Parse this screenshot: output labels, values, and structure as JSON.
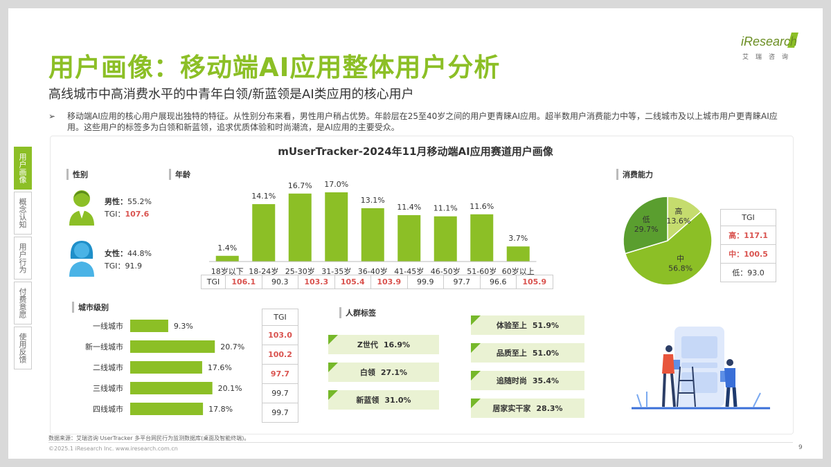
{
  "header": {
    "title": "用户画像：移动端AI应用整体用户分析",
    "subtitle": "高线城市中高消费水平的中青年白领/新蓝领是AI类应用的核心用户",
    "bullet_marker": "➢",
    "bullet": "移动端AI应用的核心用户展现出独特的特征。从性别分布来看，男性用户稍占优势。年龄层在25至40岁之间的用户更青睐AI应用。超半数用户消费能力中等，二线城市及以上城市用户更青睐AI应用。这些用户的标签多为白领和新蓝领，追求优质体验和时尚潮流，是AI应用的主要受众。"
  },
  "logo": {
    "brand": "iResearch",
    "sub": "艾瑞咨询"
  },
  "sidebar": {
    "items": [
      {
        "label": "用户画像",
        "active": true
      },
      {
        "label": "概念认知",
        "active": false
      },
      {
        "label": "用户行为",
        "active": false
      },
      {
        "label": "付费意愿",
        "active": false
      },
      {
        "label": "使用反馈",
        "active": false
      }
    ]
  },
  "colors": {
    "accent": "#8cbf26",
    "dark_green": "#5a9e2f",
    "mid_green": "#76b82a",
    "red": "#d9534f"
  },
  "sections": {
    "gender": "性别",
    "age": "年龄",
    "consumption": "消费能力",
    "city": "城市级别",
    "crowd": "人群标签"
  },
  "gender": {
    "male": {
      "label": "男性：",
      "pct": "55.2%",
      "tgi_label": "TGI：",
      "tgi": "107.6"
    },
    "female": {
      "label": "女性：",
      "pct": "44.8%",
      "tgi_label": "TGI：",
      "tgi": "91.9"
    }
  },
  "chart_data": [
    {
      "type": "bar",
      "title": "mUserTracker-2024年11月移动端AI应用赛道用户画像",
      "categories": [
        "18岁以下",
        "18-24岁",
        "25-30岁",
        "31-35岁",
        "36-40岁",
        "41-45岁",
        "46-50岁",
        "51-60岁",
        "60岁以上"
      ],
      "values": [
        1.4,
        14.1,
        16.7,
        17.0,
        13.1,
        11.4,
        11.1,
        11.6,
        3.7
      ],
      "value_labels": [
        "1.4%",
        "14.1%",
        "16.7%",
        "17.0%",
        "13.1%",
        "11.4%",
        "11.1%",
        "11.6%",
        "3.7%"
      ],
      "tgi_label": "TGI",
      "tgi": [
        "106.1",
        "90.3",
        "103.3",
        "105.4",
        "103.9",
        "99.9",
        "97.7",
        "96.6",
        "105.9"
      ],
      "tgi_highlight": [
        true,
        false,
        true,
        true,
        true,
        false,
        false,
        false,
        true
      ],
      "ylim": [
        0,
        17
      ]
    },
    {
      "type": "pie",
      "slices": [
        {
          "label": "高",
          "value": 13.6,
          "pct": "13.6%",
          "color": "#c5dc6e"
        },
        {
          "label": "中",
          "value": 56.8,
          "pct": "56.8%",
          "color": "#8cbf26"
        },
        {
          "label": "低",
          "value": 29.7,
          "pct": "29.7%",
          "color": "#5a9e2f"
        }
      ],
      "tgi_header": "TGI",
      "tgi_rows": [
        {
          "text": "高：117.1",
          "highlight": true
        },
        {
          "text": "中：100.5",
          "highlight": true
        },
        {
          "text": "低：93.0",
          "highlight": false
        }
      ]
    },
    {
      "type": "bar",
      "orientation": "horizontal",
      "categories": [
        "一线城市",
        "新一线城市",
        "二线城市",
        "三线城市",
        "四线城市"
      ],
      "values": [
        9.3,
        20.7,
        17.6,
        20.1,
        17.8
      ],
      "value_labels": [
        "9.3%",
        "20.7%",
        "17.6%",
        "20.1%",
        "17.8%"
      ],
      "tgi_header": "TGI",
      "tgi": [
        "103.0",
        "100.2",
        "97.7",
        "99.7",
        "99.7"
      ],
      "tgi_highlight": [
        true,
        true,
        true,
        false,
        false
      ],
      "xlim": [
        0,
        21
      ]
    }
  ],
  "crowd_tags": [
    {
      "name": "Z世代",
      "pct": "16.9%"
    },
    {
      "name": "白领",
      "pct": "27.1%"
    },
    {
      "name": "新蓝领",
      "pct": "31.0%"
    },
    {
      "name": "体验至上",
      "pct": "51.9%"
    },
    {
      "name": "品质至上",
      "pct": "51.0%"
    },
    {
      "name": "追随时尚",
      "pct": "35.4%"
    },
    {
      "name": "居家实干家",
      "pct": "28.3%"
    }
  ],
  "footer": {
    "source": "数据来源：艾瑞咨询 UserTracker 多平台网民行为监测数据库(桌面及智能终端)。",
    "copyright": "©2025.1 iResearch Inc.                    www.iresearch.com.cn",
    "page": "9"
  }
}
